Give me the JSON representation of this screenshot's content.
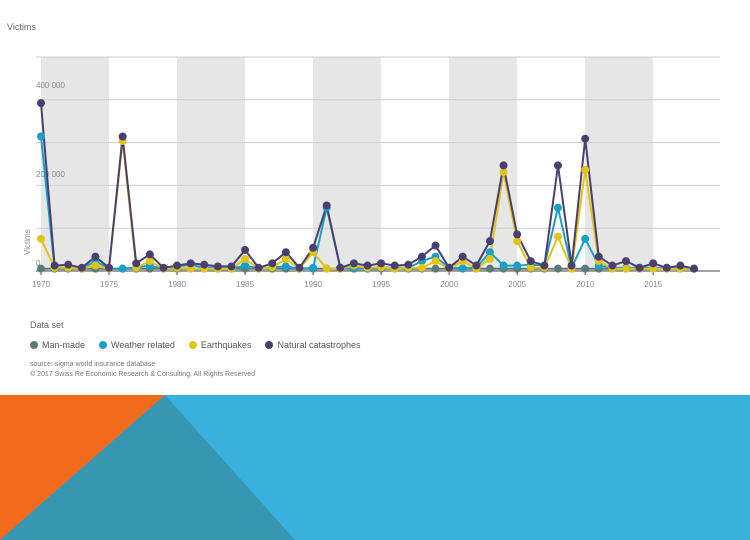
{
  "chart_data": {
    "type": "line",
    "title": "Victims",
    "ylabel": "Victims",
    "xlabel": "",
    "ylim": [
      0,
      400000
    ],
    "xlim": [
      1970,
      2018
    ],
    "x_ticks": [
      1970,
      1975,
      1980,
      1985,
      1990,
      1995,
      2000,
      2005,
      2010,
      2015
    ],
    "y_ticks": [
      0,
      200000,
      400000
    ],
    "y_tick_labels": [
      "0",
      "200 000",
      "400 000"
    ],
    "grid": true,
    "legend_position": "bottom-left",
    "x": [
      1970,
      1971,
      1972,
      1973,
      1974,
      1975,
      1976,
      1977,
      1978,
      1979,
      1980,
      1981,
      1982,
      1983,
      1984,
      1985,
      1986,
      1987,
      1988,
      1989,
      1990,
      1991,
      1992,
      1993,
      1994,
      1995,
      1996,
      1997,
      1998,
      1999,
      2000,
      2001,
      2002,
      2003,
      2004,
      2005,
      2006,
      2007,
      2008,
      2009,
      2010,
      2011,
      2012,
      2013,
      2014,
      2015,
      2016,
      2017,
      2018
    ],
    "series": [
      {
        "name": "Man-made",
        "color": "#5e7a77",
        "values": [
          3000,
          3000,
          3000,
          3000,
          3000,
          3000,
          3000,
          3000,
          3000,
          3000,
          3000,
          3000,
          3000,
          3000,
          3000,
          3000,
          3000,
          3000,
          3000,
          3000,
          3000,
          3000,
          3000,
          3000,
          3000,
          3000,
          3000,
          3000,
          3000,
          3000,
          3000,
          3000,
          3000,
          3000,
          3000,
          3000,
          3000,
          3000,
          3000,
          3000,
          3000,
          3000,
          3000,
          3000,
          3000,
          3000,
          3000,
          3000,
          3000
        ]
      },
      {
        "name": "Weather related",
        "color": "#1aa0c8",
        "values": [
          300000,
          5000,
          5000,
          3000,
          20000,
          3000,
          3000,
          6000,
          10000,
          3000,
          8000,
          12000,
          5000,
          5000,
          3000,
          10000,
          4000,
          6000,
          8000,
          3000,
          5000,
          140000,
          5000,
          5000,
          3000,
          6000,
          5000,
          5000,
          20000,
          30000,
          5000,
          4000,
          5000,
          40000,
          10000,
          10000,
          12000,
          10000,
          140000,
          5000,
          70000,
          10000,
          5000,
          5000,
          5000,
          5000,
          5000,
          5000,
          3000
        ]
      },
      {
        "name": "Earthquakes",
        "color": "#e0c418",
        "values": [
          70000,
          5000,
          5000,
          3000,
          10000,
          3000,
          290000,
          5000,
          20000,
          3000,
          5000,
          3000,
          3000,
          3000,
          3000,
          25000,
          3000,
          6000,
          25000,
          3000,
          40000,
          3000,
          3000,
          10000,
          5000,
          6000,
          3000,
          5000,
          5000,
          20000,
          3000,
          20000,
          3000,
          25000,
          220000,
          65000,
          5000,
          5000,
          75000,
          3000,
          225000,
          20000,
          3000,
          3000,
          3000,
          3000,
          3000,
          3000,
          3000
        ]
      },
      {
        "name": "Natural catastrophes",
        "color": "#4a3f70",
        "values": [
          375000,
          10000,
          12000,
          5000,
          30000,
          5000,
          300000,
          15000,
          35000,
          5000,
          10000,
          15000,
          12000,
          8000,
          8000,
          45000,
          5000,
          15000,
          40000,
          5000,
          50000,
          145000,
          5000,
          15000,
          10000,
          15000,
          10000,
          12000,
          30000,
          55000,
          5000,
          30000,
          10000,
          65000,
          235000,
          80000,
          20000,
          10000,
          235000,
          10000,
          295000,
          30000,
          10000,
          20000,
          5000,
          15000,
          5000,
          10000,
          3000
        ]
      }
    ]
  },
  "legend": {
    "title": "Data set",
    "items": [
      {
        "label": "Man-made",
        "color": "#5e7a77"
      },
      {
        "label": "Weather related",
        "color": "#1aa0c8"
      },
      {
        "label": "Earthquakes",
        "color": "#e0c418"
      },
      {
        "label": "Natural catastrophes",
        "color": "#4a3f70"
      }
    ]
  },
  "source": {
    "line1": "source: sigma world insurance database",
    "line2": "© 2017 Swiss Re Economic Research & Consulting. All Rights Reserved"
  },
  "deco_colors": {
    "orange": "#f26b1d",
    "teal": "#3797b2",
    "blue": "#39b0dd"
  }
}
